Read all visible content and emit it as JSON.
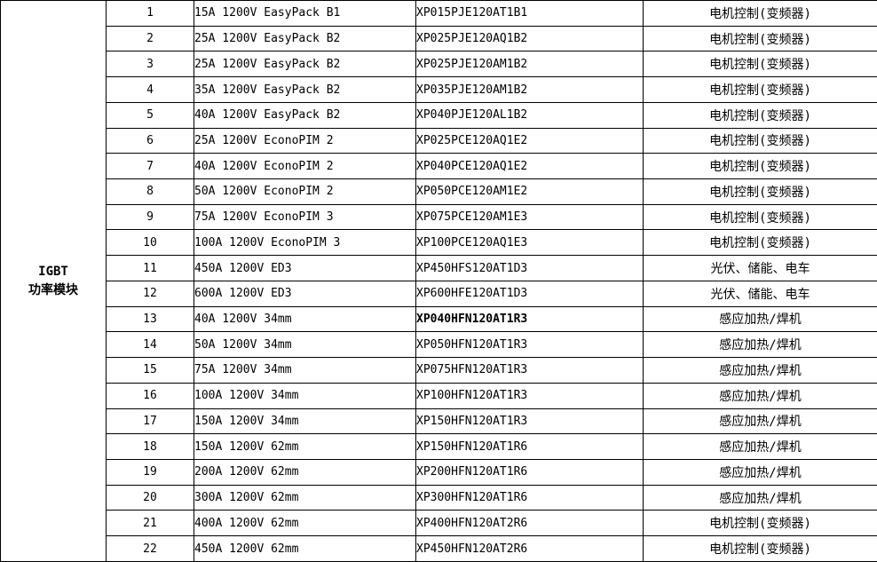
{
  "colors": {
    "border": "#000000",
    "text": "#000000",
    "background": "#ffffff"
  },
  "table": {
    "category": {
      "line1": "IGBT",
      "line2": "功率模块"
    },
    "rows": [
      {
        "num": "1",
        "spec": "15A 1200V EasyPack B1",
        "part": "XP015PJE120AT1B1",
        "part_bold": false,
        "app": "电机控制(变频器)"
      },
      {
        "num": "2",
        "spec": "25A 1200V EasyPack B2",
        "part": "XP025PJE120AQ1B2",
        "part_bold": false,
        "app": "电机控制(变频器)"
      },
      {
        "num": "3",
        "spec": "25A 1200V EasyPack B2",
        "part": "XP025PJE120AM1B2",
        "part_bold": false,
        "app": "电机控制(变频器)"
      },
      {
        "num": "4",
        "spec": "35A 1200V EasyPack B2",
        "part": "XP035PJE120AM1B2",
        "part_bold": false,
        "app": "电机控制(变频器)"
      },
      {
        "num": "5",
        "spec": "40A 1200V EasyPack B2",
        "part": "XP040PJE120AL1B2",
        "part_bold": false,
        "app": "电机控制(变频器)"
      },
      {
        "num": "6",
        "spec": "25A 1200V EconoPIM 2",
        "part": "XP025PCE120AQ1E2",
        "part_bold": false,
        "app": "电机控制(变频器)"
      },
      {
        "num": "7",
        "spec": "40A 1200V EconoPIM 2",
        "part": "XP040PCE120AQ1E2",
        "part_bold": false,
        "app": "电机控制(变频器)"
      },
      {
        "num": "8",
        "spec": "50A 1200V EconoPIM 2",
        "part": "XP050PCE120AM1E2",
        "part_bold": false,
        "app": "电机控制(变频器)"
      },
      {
        "num": "9",
        "spec": "75A 1200V EconoPIM 3",
        "part": "XP075PCE120AM1E3",
        "part_bold": false,
        "app": "电机控制(变频器)"
      },
      {
        "num": "10",
        "spec": "100A 1200V EconoPIM 3",
        "part": "XP100PCE120AQ1E3",
        "part_bold": false,
        "app": "电机控制(变频器)"
      },
      {
        "num": "11",
        "spec": "450A 1200V ED3",
        "part": "XP450HFS120AT1D3",
        "part_bold": false,
        "app": "光伏、储能、电车"
      },
      {
        "num": "12",
        "spec": "600A 1200V ED3",
        "part": "XP600HFE120AT1D3",
        "part_bold": false,
        "app": "光伏、储能、电车"
      },
      {
        "num": "13",
        "spec": "40A 1200V 34mm",
        "part": "XP040HFN120AT1R3",
        "part_bold": true,
        "app": "感应加热/焊机"
      },
      {
        "num": "14",
        "spec": "50A 1200V 34mm",
        "part": "XP050HFN120AT1R3",
        "part_bold": false,
        "app": "感应加热/焊机"
      },
      {
        "num": "15",
        "spec": "75A 1200V 34mm",
        "part": "XP075HFN120AT1R3",
        "part_bold": false,
        "app": "感应加热/焊机"
      },
      {
        "num": "16",
        "spec": "100A 1200V 34mm",
        "part": "XP100HFN120AT1R3",
        "part_bold": false,
        "app": "感应加热/焊机"
      },
      {
        "num": "17",
        "spec": "150A 1200V 34mm",
        "part": "XP150HFN120AT1R3",
        "part_bold": false,
        "app": "感应加热/焊机"
      },
      {
        "num": "18",
        "spec": "150A 1200V 62mm",
        "part": "XP150HFN120AT1R6",
        "part_bold": false,
        "app": "感应加热/焊机"
      },
      {
        "num": "19",
        "spec": "200A 1200V 62mm",
        "part": "XP200HFN120AT1R6",
        "part_bold": false,
        "app": "感应加热/焊机"
      },
      {
        "num": "20",
        "spec": "300A 1200V 62mm",
        "part": "XP300HFN120AT1R6",
        "part_bold": false,
        "app": "感应加热/焊机"
      },
      {
        "num": "21",
        "spec": "400A 1200V 62mm",
        "part": "XP400HFN120AT2R6",
        "part_bold": false,
        "app": "电机控制(变频器)"
      },
      {
        "num": "22",
        "spec": "450A 1200V 62mm",
        "part": "XP450HFN120AT2R6",
        "part_bold": false,
        "app": "电机控制(变频器)"
      }
    ]
  }
}
